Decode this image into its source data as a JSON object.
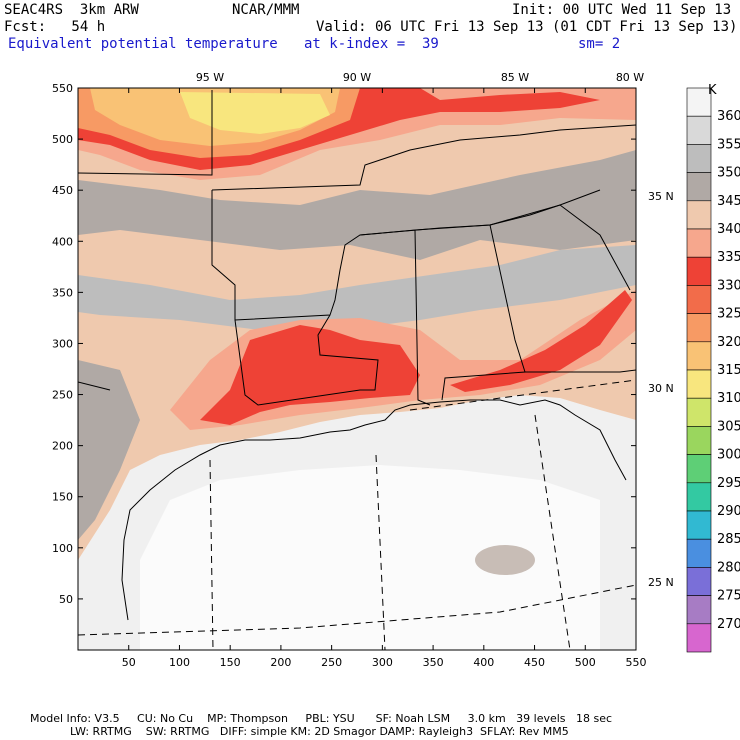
{
  "header": {
    "model": "SEAC4RS  3km ARW",
    "org": "NCAR/MMM",
    "init": "Init: 00 UTC Wed 11 Sep 13",
    "fcst": "Fcst:   54 h",
    "valid": "Valid: 06 UTC Fri 13 Sep 13 (01 CDT Fri 13 Sep 13)",
    "field": "Equivalent potential temperature",
    "level": "at k-index =  39",
    "smooth": "sm= 2"
  },
  "chart_data": {
    "type": "heatmap",
    "title": "Equivalent potential temperature",
    "units": "K",
    "xlim": [
      0,
      550
    ],
    "ylim": [
      0,
      550
    ],
    "x_ticks": [
      50,
      100,
      150,
      200,
      250,
      300,
      350,
      400,
      450,
      500,
      550
    ],
    "y_ticks": [
      50,
      100,
      150,
      200,
      250,
      300,
      350,
      400,
      450,
      500,
      550
    ],
    "lon_labels": [
      "95 W",
      "90 W",
      "85 W",
      "80 W"
    ],
    "lat_labels": [
      "35 N",
      "30 N",
      "25 N"
    ],
    "colorbar": {
      "levels": [
        360,
        355,
        350,
        345,
        340,
        335,
        330,
        325,
        320,
        315,
        310,
        305,
        300,
        295,
        290,
        285,
        280,
        275,
        270
      ],
      "colors": [
        "#f4f4f4",
        "#d9d9d9",
        "#bdbdbd",
        "#b0a9a5",
        "#efc9ae",
        "#f6a78d",
        "#ee4236",
        "#f26c4a",
        "#f79a64",
        "#f9c275",
        "#f8e67e",
        "#cfe56a",
        "#9ad65e",
        "#5ecf76",
        "#33c9a2",
        "#31b9d2",
        "#4a8fe0",
        "#7a6fd8",
        "#a77cc4",
        "#d766cf"
      ]
    }
  },
  "footer": {
    "line1": "Model Info: V3.5     CU: No Cu    MP: Thompson     PBL: YSU      SF: Noah LSM     3.0 km   39 levels   18 sec",
    "line2": "LW: RRTMG    SW: RRTMG   DIFF: simple KM: 2D Smagor DAMP: Rayleigh3  SFLAY: Rev MM5"
  }
}
